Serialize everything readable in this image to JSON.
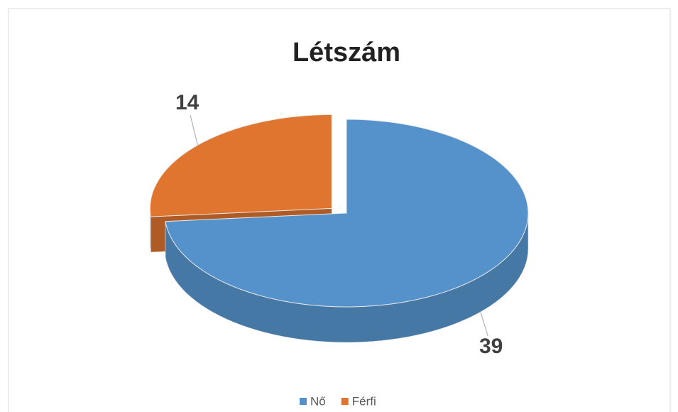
{
  "chart_data": {
    "type": "pie",
    "title": "Létszám",
    "categories": [
      "Nő",
      "Férfi"
    ],
    "values": [
      39,
      14
    ],
    "colors": [
      "#5592cb",
      "#e07530"
    ]
  }
}
